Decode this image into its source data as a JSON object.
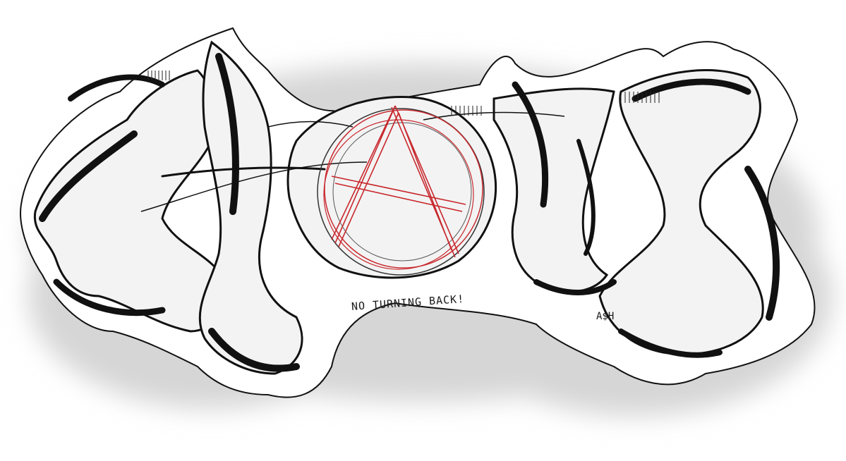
{
  "artwork": {
    "caption": "NO TURNING BACK!",
    "signature": "A$H",
    "ink_color": "#111111",
    "accent_color": "#c8282d",
    "fill_color": "#f2f2f2",
    "shadow_color": "#d9d9d9"
  }
}
